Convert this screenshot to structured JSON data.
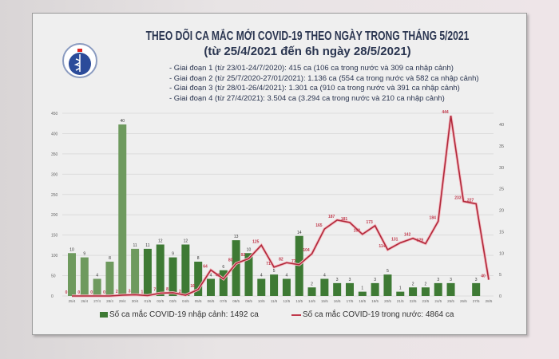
{
  "chart_data": {
    "type": "bar+line",
    "title": "THEO DÕI CA MẮC MỚI COVID-19 THEO NGÀY TRONG THÁNG 5/2021",
    "subtitle": "(từ 25/4/2021 đến 6h ngày 28/5/2021)",
    "notes": [
      "- Giai đoạn 1 (từ 23/01-24/7/2020): 415 ca (106 ca trong nước và 309 ca nhập cảnh)",
      "- Giai đoạn 2 (từ 25/7/2020-27/01/2021): 1.136 ca (554 ca trong nước và 582 ca nhập cảnh)",
      "- Giai đoạn 3 (từ 28/01-26/4/2021): 1.301 ca (910 ca trong nước và 391 ca nhập cảnh)",
      "- Giai đoạn 4 (từ 27/4/2021): 3.504 ca (3.294 ca trong nước và 210 ca nhập cảnh)"
    ],
    "categories": [
      "25/4",
      "26/4",
      "27/4",
      "28/4",
      "29/4",
      "30/4",
      "01/5",
      "02/5",
      "03/5",
      "04/5",
      "05/5",
      "06/5",
      "07/5",
      "08/5",
      "09/5",
      "10/5",
      "11/5",
      "12/5",
      "13/5",
      "14/5",
      "15/5",
      "16/5",
      "17/5",
      "18/5",
      "19/5",
      "20/5",
      "21/5",
      "22/5",
      "23/5",
      "24/5",
      "25/5",
      "26/5",
      "27/5",
      "28/5"
    ],
    "left_axis": {
      "ylim": [
        0,
        450
      ],
      "ticks": [
        0,
        50,
        100,
        150,
        200,
        250,
        300,
        350,
        400,
        450
      ]
    },
    "right_axis": {
      "ylim": [
        0,
        45
      ],
      "ticks": [
        0,
        5,
        10,
        15,
        20,
        25,
        30,
        35,
        40
      ]
    },
    "series": [
      {
        "name": "Số ca mắc COVID-19 nhập cảnh: 1492 ca",
        "type": "bar",
        "axis": "right",
        "color": "#3e7a34",
        "values": [
          10,
          9,
          4,
          8,
          40,
          11,
          11,
          12,
          9,
          12,
          8,
          4,
          6,
          13,
          10,
          4,
          5,
          4,
          14,
          2,
          4,
          3,
          3,
          1,
          3,
          5,
          1,
          2,
          2,
          3,
          3,
          null,
          3,
          null
        ]
      },
      {
        "name": "Số ca mắc COVID-19 trong nước: 4864 ca",
        "type": "line",
        "axis": "left",
        "color": "#c0394b",
        "values": [
          0,
          0,
          0,
          0,
          2,
          3,
          1,
          7,
          8,
          2,
          16,
          64,
          42,
          80,
          92,
          125,
          71,
          82,
          77,
          104,
          165,
          187,
          181,
          152,
          173,
          114,
          131,
          142,
          129,
          184,
          444,
          233,
          227,
          40
        ]
      }
    ],
    "grid": true,
    "legend": "bottom"
  },
  "logo": {
    "text": "BỘ Y TẾ"
  }
}
